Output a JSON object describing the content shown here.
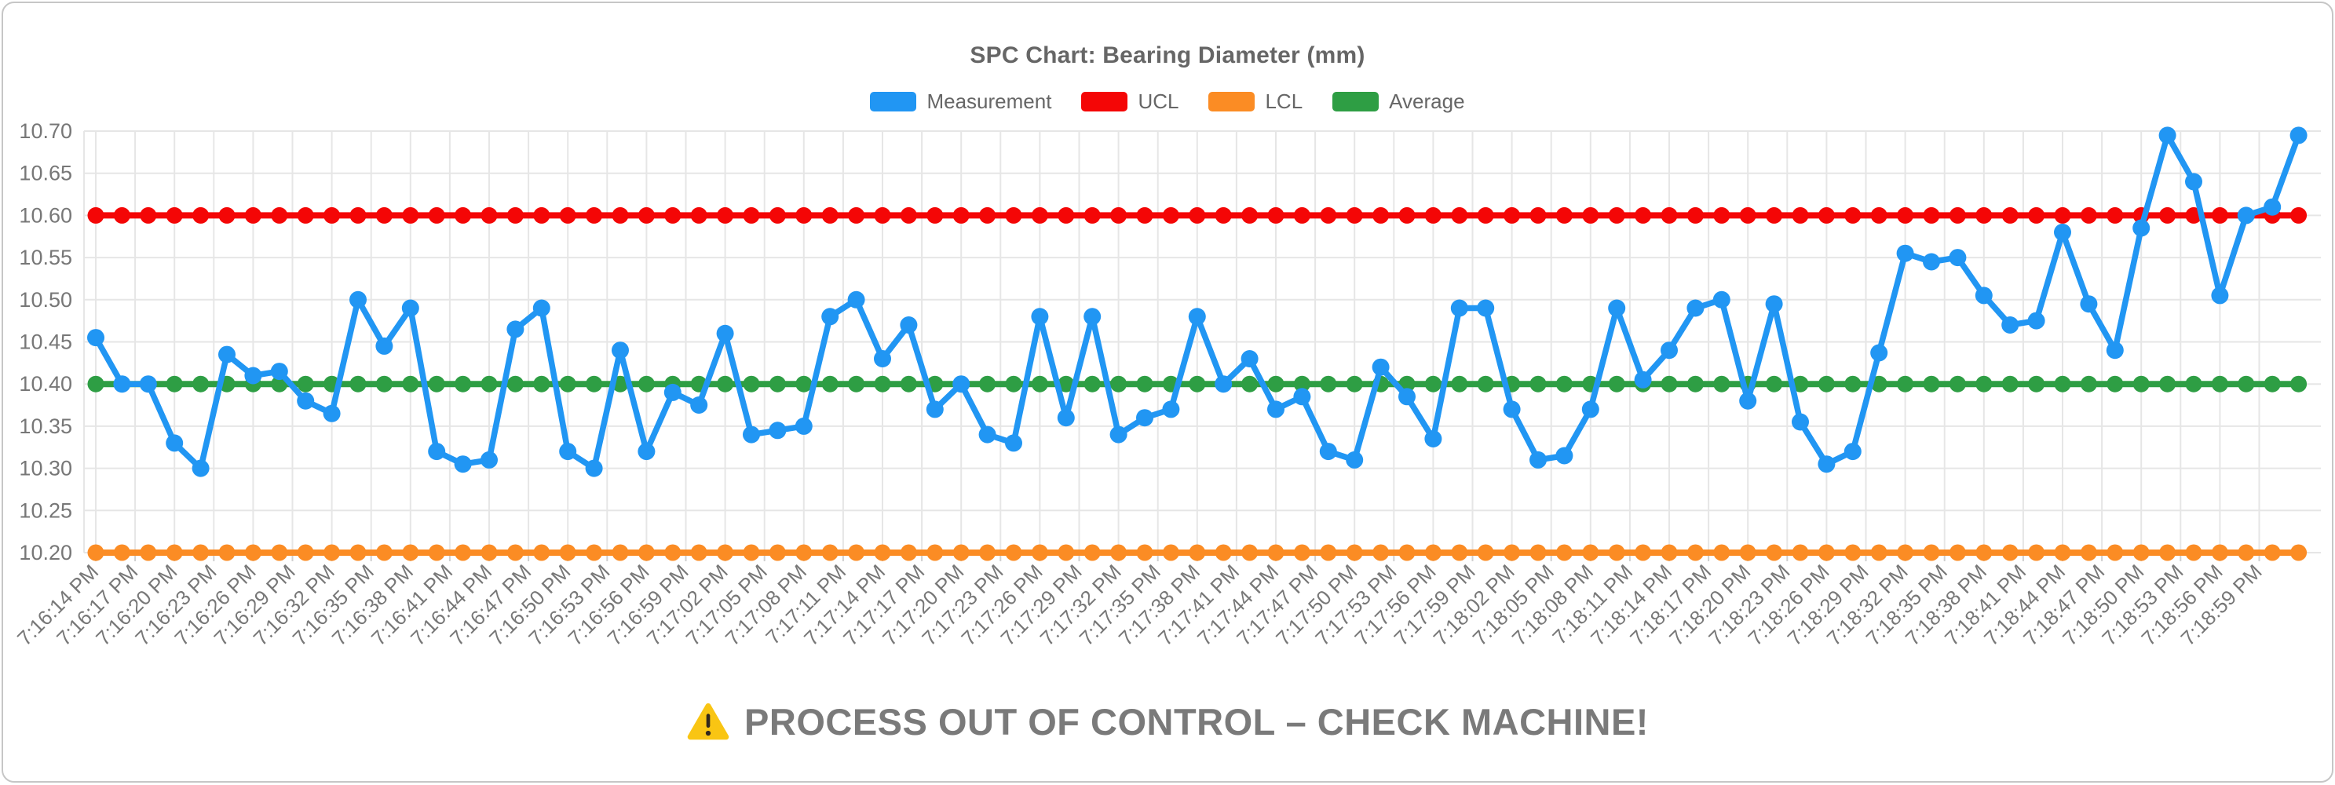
{
  "page": {
    "background": "#ffffff",
    "card_border_color": "#c6c6c6"
  },
  "warning": {
    "icon": "warning-triangle-icon",
    "icon_color": "#f9c513",
    "icon_mark_color": "#31271d",
    "text": "PROCESS OUT OF CONTROL – CHECK MACHINE!",
    "text_color": "#7a7a7a"
  },
  "chart_data": {
    "type": "line",
    "title": "SPC Chart: Bearing Diameter (mm)",
    "xlabel": "",
    "ylabel": "",
    "ylim": [
      10.2,
      10.7
    ],
    "grid": true,
    "legend_position": "top",
    "y_tick_labels": [
      "10.70",
      "10.65",
      "10.60",
      "10.55",
      "10.50",
      "10.45",
      "10.40",
      "10.35",
      "10.30",
      "10.25",
      "10.20"
    ],
    "x_tick_labels": [
      "7:16:14 PM",
      "7:16:17 PM",
      "7:16:20 PM",
      "7:16:23 PM",
      "7:16:26 PM",
      "7:16:29 PM",
      "7:16:32 PM",
      "7:16:35 PM",
      "7:16:38 PM",
      "7:16:41 PM",
      "7:16:44 PM",
      "7:16:47 PM",
      "7:16:50 PM",
      "7:16:53 PM",
      "7:16:56 PM",
      "7:16:59 PM",
      "7:17:02 PM",
      "7:17:05 PM",
      "7:17:08 PM",
      "7:17:11 PM",
      "7:17:14 PM",
      "7:17:17 PM",
      "7:17:20 PM",
      "7:17:23 PM",
      "7:17:26 PM",
      "7:17:29 PM",
      "7:17:32 PM",
      "7:17:35 PM",
      "7:17:38 PM",
      "7:17:41 PM",
      "7:17:44 PM",
      "7:17:47 PM",
      "7:17:50 PM",
      "7:17:53 PM",
      "7:17:56 PM",
      "7:17:59 PM",
      "7:18:02 PM",
      "7:18:05 PM",
      "7:18:08 PM",
      "7:18:11 PM",
      "7:18:14 PM",
      "7:18:17 PM",
      "7:18:20 PM",
      "7:18:23 PM",
      "7:18:26 PM",
      "7:18:29 PM",
      "7:18:32 PM",
      "7:18:35 PM",
      "7:18:38 PM",
      "7:18:41 PM",
      "7:18:44 PM",
      "7:18:47 PM",
      "7:18:50 PM",
      "7:18:53 PM",
      "7:18:56 PM",
      "7:18:59 PM"
    ],
    "x_start_time": "7:16:14 PM",
    "x_sample_interval_seconds": 2,
    "x_tick_interval_seconds": 3,
    "series": [
      {
        "name": "Measurement",
        "color": "#2196f3",
        "values": [
          10.455,
          10.4,
          10.4,
          10.33,
          10.3,
          10.435,
          10.41,
          10.415,
          10.38,
          10.365,
          10.5,
          10.445,
          10.49,
          10.32,
          10.305,
          10.31,
          10.465,
          10.49,
          10.32,
          10.3,
          10.44,
          10.32,
          10.39,
          10.375,
          10.46,
          10.34,
          10.345,
          10.35,
          10.48,
          10.5,
          10.43,
          10.47,
          10.37,
          10.4,
          10.34,
          10.33,
          10.48,
          10.36,
          10.48,
          10.34,
          10.36,
          10.37,
          10.48,
          10.4,
          10.43,
          10.37,
          10.385,
          10.32,
          10.31,
          10.42,
          10.385,
          10.335,
          10.49,
          10.49,
          10.37,
          10.31,
          10.315,
          10.37,
          10.49,
          10.405,
          10.44,
          10.49,
          10.5,
          10.38,
          10.495,
          10.355,
          10.305,
          10.32,
          10.437,
          10.555,
          10.545,
          10.55,
          10.505,
          10.47,
          10.475,
          10.58,
          10.495,
          10.44,
          10.585,
          10.695,
          10.64,
          10.505,
          10.6,
          10.61,
          10.695
        ]
      },
      {
        "name": "UCL",
        "color": "#f40606",
        "constant": 10.6
      },
      {
        "name": "LCL",
        "color": "#fb8c24",
        "constant": 10.2
      },
      {
        "name": "Average",
        "color": "#2e9e44",
        "constant": 10.4
      }
    ],
    "gridline_color": "#e6e6e6",
    "tick_text_color": "#777777",
    "title_color": "#666666"
  }
}
